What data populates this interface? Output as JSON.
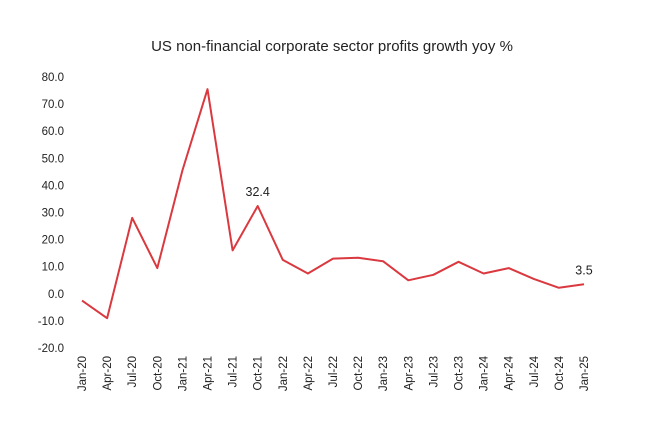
{
  "chart_data": {
    "type": "line",
    "title": "US non-financial corporate sector profits growth yoy %",
    "xlabel": "",
    "ylabel": "",
    "ylim": [
      -20,
      80
    ],
    "yticks": [
      "80.0",
      "70.0",
      "60.0",
      "50.0",
      "40.0",
      "30.0",
      "20.0",
      "10.0",
      "0.0",
      "-10.0",
      "-20.0"
    ],
    "ytick_values": [
      80,
      70,
      60,
      50,
      40,
      30,
      20,
      10,
      0,
      -10,
      -20
    ],
    "categories": [
      "Jan-20",
      "Apr-20",
      "Jul-20",
      "Oct-20",
      "Jan-21",
      "Apr-21",
      "Jul-21",
      "Oct-21",
      "Jan-22",
      "Apr-22",
      "Jul-22",
      "Oct-22",
      "Jan-23",
      "Apr-23",
      "Jul-23",
      "Oct-23",
      "Jan-24",
      "Apr-24",
      "Jul-24",
      "Oct-24",
      "Jan-25"
    ],
    "series": [
      {
        "values": [
          -2.5,
          -9.0,
          28.0,
          9.5,
          45.5,
          75.5,
          16.0,
          32.4,
          12.5,
          7.5,
          13.0,
          13.3,
          12.0,
          5.0,
          7.0,
          11.8,
          7.5,
          9.5,
          5.5,
          2.2,
          3.5
        ],
        "color": "#d9393f"
      }
    ],
    "data_labels": [
      {
        "index": 7,
        "text": "32.4"
      },
      {
        "index": 20,
        "text": "3.5"
      }
    ],
    "grid": false,
    "legend": "none"
  }
}
